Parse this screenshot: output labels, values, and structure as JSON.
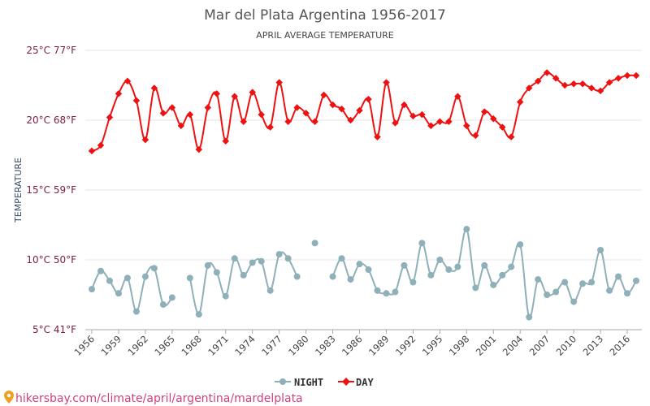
{
  "chart_data": {
    "type": "line",
    "title": "Mar del Plata Argentina 1956-2017",
    "subtitle": "APRIL AVERAGE TEMPERATURE",
    "ylabel": "TEMPERATURE",
    "xlabel": "",
    "ylim": [
      5,
      25
    ],
    "yticks": [
      {
        "value": 25,
        "label": "25°C 77°F"
      },
      {
        "value": 20,
        "label": "20°C 68°F"
      },
      {
        "value": 15,
        "label": "15°C 59°F"
      },
      {
        "value": 10,
        "label": "10°C 50°F"
      },
      {
        "value": 5,
        "label": "5°C 41°F"
      }
    ],
    "xticks": [
      "1956",
      "1959",
      "1962",
      "1965",
      "1968",
      "1971",
      "1974",
      "1977",
      "1980",
      "1983",
      "1986",
      "1989",
      "1992",
      "1995",
      "1998",
      "2001",
      "2004",
      "2007",
      "2010",
      "2013",
      "2016"
    ],
    "x": [
      1956,
      1957,
      1958,
      1959,
      1960,
      1961,
      1962,
      1963,
      1964,
      1965,
      1966,
      1967,
      1968,
      1969,
      1970,
      1971,
      1972,
      1973,
      1974,
      1975,
      1976,
      1977,
      1978,
      1979,
      1980,
      1981,
      1982,
      1983,
      1984,
      1985,
      1986,
      1987,
      1988,
      1989,
      1990,
      1991,
      1992,
      1993,
      1994,
      1995,
      1996,
      1997,
      1998,
      1999,
      2000,
      2001,
      2002,
      2003,
      2004,
      2005,
      2006,
      2007,
      2008,
      2009,
      2010,
      2011,
      2012,
      2013,
      2014,
      2015,
      2016,
      2017
    ],
    "series": [
      {
        "name": "NIGHT",
        "color": "#8fb0b8",
        "values": [
          7.9,
          9.2,
          8.5,
          7.6,
          8.7,
          6.3,
          8.8,
          9.4,
          6.8,
          7.3,
          null,
          8.7,
          6.1,
          9.6,
          9.1,
          7.4,
          10.1,
          8.9,
          9.8,
          9.9,
          7.8,
          10.4,
          10.1,
          8.8,
          null,
          11.2,
          null,
          8.8,
          10.1,
          8.6,
          9.7,
          9.3,
          7.8,
          7.6,
          7.7,
          9.6,
          8.4,
          11.2,
          8.9,
          10.0,
          9.3,
          9.5,
          12.2,
          8.0,
          9.6,
          8.2,
          8.9,
          9.5,
          11.1,
          5.9,
          8.6,
          7.5,
          7.7,
          8.4,
          7.0,
          8.3,
          8.4,
          10.7,
          7.8,
          8.8,
          7.6,
          8.5
        ]
      },
      {
        "name": "DAY",
        "color": "#ee1111",
        "values": [
          17.8,
          18.2,
          20.2,
          21.9,
          22.8,
          21.4,
          18.6,
          22.3,
          20.5,
          20.9,
          19.6,
          20.4,
          17.9,
          20.9,
          21.9,
          18.5,
          21.7,
          19.9,
          22.0,
          20.4,
          19.5,
          22.7,
          19.9,
          20.9,
          20.5,
          19.9,
          21.8,
          21.1,
          20.8,
          20.0,
          20.7,
          21.5,
          18.8,
          22.7,
          19.8,
          21.1,
          20.3,
          20.4,
          19.6,
          19.9,
          19.9,
          21.7,
          19.6,
          18.9,
          20.6,
          20.1,
          19.5,
          18.8,
          21.3,
          22.3,
          22.8,
          23.4,
          23.0,
          22.5,
          22.6,
          22.6,
          22.3,
          22.1,
          22.7,
          23.0,
          23.2,
          23.2
        ]
      }
    ],
    "legend_position": "bottom-center",
    "grid": true
  },
  "footer": {
    "source_text": "hikersbay.com/climate/april/argentina/mardelplata"
  }
}
